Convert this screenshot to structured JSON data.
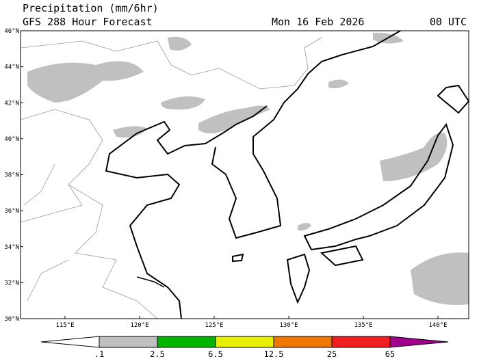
{
  "header": {
    "title": "Precipitation (mm/6hr)",
    "subtitle": "GFS 288 Hour Forecast",
    "date": "Mon 16 Feb 2026",
    "time": "00 UTC"
  },
  "map": {
    "lat_labels": [
      "30°N",
      "32°N",
      "34°N",
      "36°N",
      "38°N",
      "40°N",
      "42°N",
      "44°N",
      "46°N"
    ],
    "lon_labels": [
      "115°E",
      "120°E",
      "125°E",
      "130°E",
      "135°E",
      "140°E"
    ]
  },
  "colorbar": {
    "labels": [
      ".1",
      "2.5",
      "6.5",
      "12.5",
      "25",
      "65"
    ]
  }
}
